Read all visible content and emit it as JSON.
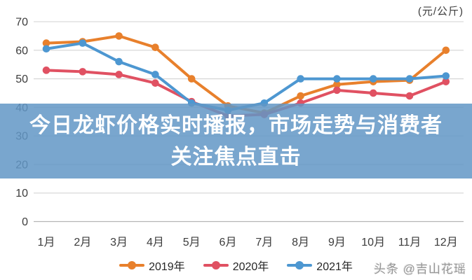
{
  "title_overlay": {
    "line1": "今日龙虾价格实时播报，市场走势与消费者",
    "line2": "关注焦点直击"
  },
  "unit_label": "(元/公斤)",
  "watermark": "头条 @吉山花瑶",
  "legend": [
    "2019年",
    "2020年",
    "2021年"
  ],
  "chart_data": {
    "type": "line",
    "categories": [
      "1月",
      "2月",
      "3月",
      "4月",
      "5月",
      "6月",
      "7月",
      "8月",
      "9月",
      "10月",
      "11月",
      "12月"
    ],
    "series": [
      {
        "name": "2019年",
        "color": "#E8802C",
        "values": [
          62.5,
          63,
          65,
          61,
          50,
          40.5,
          38,
          44,
          48,
          49,
          49.5,
          60
        ]
      },
      {
        "name": "2020年",
        "color": "#E05162",
        "values": [
          53,
          52.5,
          51.5,
          48.5,
          42,
          37,
          37.5,
          41.5,
          46,
          45,
          44,
          49
        ]
      },
      {
        "name": "2021年",
        "color": "#4D97D1",
        "values": [
          60.5,
          62.5,
          56,
          51.5,
          41.5,
          39,
          41.5,
          50,
          50,
          50,
          50,
          51
        ]
      }
    ],
    "ylabel": "",
    "xlabel": "",
    "unit": "元/公斤",
    "ylim": [
      0,
      70
    ],
    "yticks": [
      0,
      10,
      20,
      30,
      40,
      50,
      60,
      70
    ],
    "grid": true,
    "legend_position": "bottom"
  },
  "colors": {
    "banner": "rgba(97,150,198,0.85)",
    "gridline": "#d9d9d9",
    "axis_line": "#b5b5b5",
    "axis_text": "#3c3c3c",
    "banner_text": "#ffffff",
    "watermark_text": "#969696"
  }
}
